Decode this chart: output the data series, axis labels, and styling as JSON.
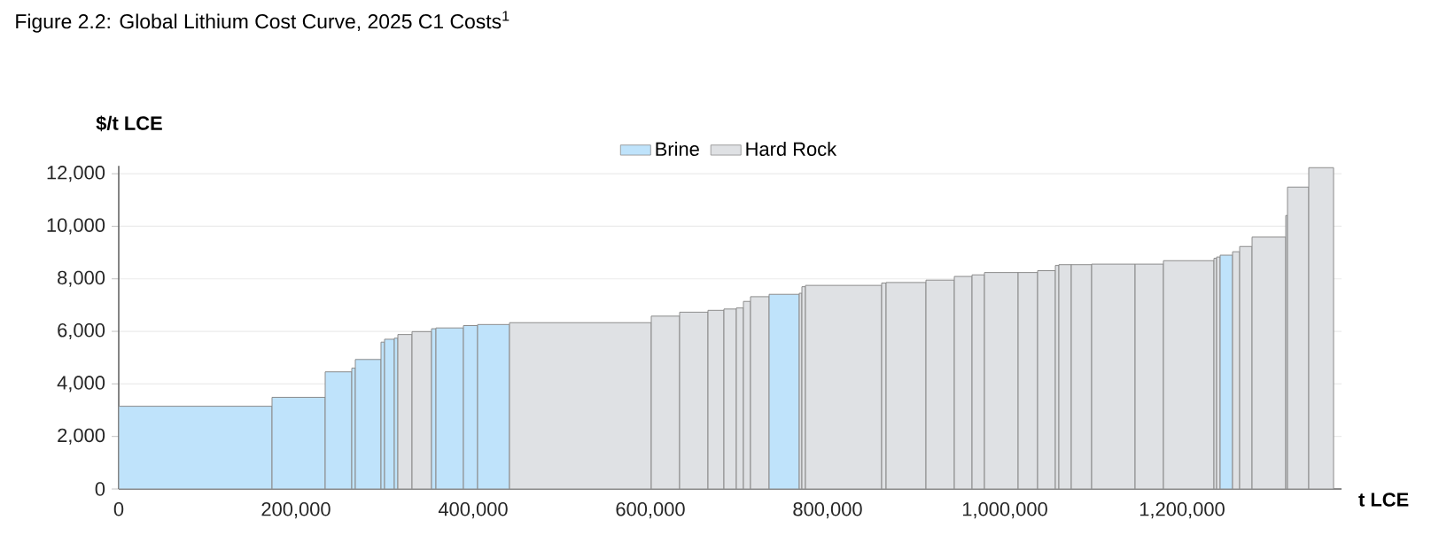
{
  "chart_data": {
    "type": "histogram",
    "title": "Figure 2.2: Global Lithium Cost Curve, 2025 C1 Costs$^{1}$",
    "xlabel": "t LCE",
    "ylabel": "$/t LCE",
    "bins": [
      0,
      173000,
      233000,
      263000,
      267000,
      296000,
      300000,
      311000,
      315000,
      331000,
      353000,
      358000,
      389000,
      405000,
      441000,
      601000,
      633000,
      665000,
      683000,
      697000,
      705000,
      713000,
      734000,
      768000,
      771000,
      775000,
      861000,
      866000,
      911000,
      943000,
      963000,
      977000,
      1015000,
      1037000,
      1057000,
      1061000,
      1075000,
      1098000,
      1147000,
      1179000,
      1236000,
      1239000,
      1243000,
      1257000,
      1265000,
      1279000,
      1317000,
      1319000,
      1343000,
      1371000
    ],
    "series": [
      {
        "name": "Brine",
        "color": "#bfe3fb",
        "values": [
          3150,
          3490,
          4460,
          4600,
          4930,
          5590,
          5700,
          5740,
          null,
          null,
          6100,
          6130,
          6220,
          6260,
          null,
          null,
          null,
          null,
          null,
          null,
          null,
          null,
          7410,
          null,
          null,
          null,
          null,
          null,
          null,
          null,
          null,
          null,
          null,
          null,
          null,
          null,
          null,
          null,
          null,
          null,
          null,
          null,
          8900,
          null,
          null,
          null,
          null,
          null,
          null
        ]
      },
      {
        "name": "Hard Rock",
        "color": "#dfe1e4",
        "values": [
          null,
          null,
          null,
          null,
          null,
          null,
          null,
          null,
          5880,
          5990,
          null,
          null,
          null,
          null,
          6330,
          6580,
          6730,
          6800,
          6850,
          6890,
          7140,
          7320,
          null,
          7450,
          7700,
          7750,
          7840,
          7860,
          7950,
          8090,
          8150,
          8240,
          8240,
          8310,
          8510,
          8540,
          8540,
          8560,
          8560,
          8690,
          8780,
          8830,
          null,
          9030,
          9230,
          9590,
          10410,
          11490,
          12230
        ]
      }
    ],
    "xlim": [
      0,
      1380000
    ],
    "ylim": [
      0,
      12300
    ],
    "xticks": [
      0,
      {
        "value": 200000,
        "label": "200,000"
      },
      {
        "value": 400000,
        "label": "400,000"
      },
      {
        "value": 600000,
        "label": "600,000"
      },
      {
        "value": 800000,
        "label": "800,000"
      },
      {
        "value": 1000000,
        "label": "1,000,000"
      },
      {
        "value": 1200000,
        "label": "1,200,000"
      }
    ],
    "yticks": [
      0,
      {
        "value": 2000,
        "label": "2,000"
      },
      {
        "value": 4000,
        "label": "4,000"
      },
      {
        "value": 6000,
        "label": "6,000"
      },
      {
        "value": 8000,
        "label": "8,000"
      },
      {
        "value": 10000,
        "label": "10,000"
      },
      {
        "value": 12000,
        "label": "12,000"
      }
    ],
    "grid": "y",
    "legend": "top"
  }
}
